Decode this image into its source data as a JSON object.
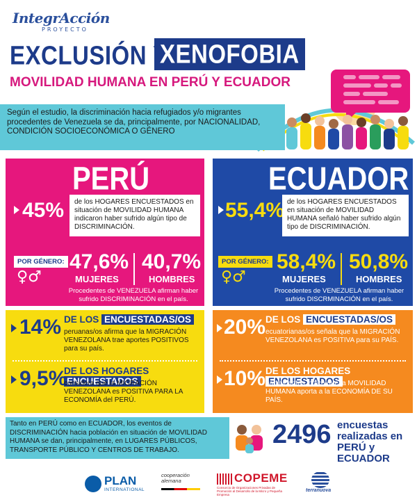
{
  "header": {
    "logo_text": "IntegrAcción",
    "logo_sub": "PROYECTO",
    "title_part1": "EXCLUSIÓN Y",
    "title_part2": "XENOFOBIA",
    "subtitle": "MOVILIDAD HUMANA EN PERÚ Y ECUADOR"
  },
  "intro": {
    "text": "Según el estudio, la discriminación hacia refugiados y/o migrantes procedentes de Venezuela se da, principalmente, por NACIONALIDAD, CONDICIÓN SOCIOECONÓMICA O GÉNERO"
  },
  "peru": {
    "name": "PERÚ",
    "main_pct": "45%",
    "main_text": "de los HOGARES ENCUESTADOS en situación de MOVILIDAD HUMANA indicaron haber sufrido algún tipo de DISCRIMINACIÓN.",
    "gender_label": "POR GÉNERO:",
    "gender_symbols": "♀♂",
    "women_pct": "47,6%",
    "women_label": "MUJERES",
    "men_pct": "40,7%",
    "men_label": "HOMBRES",
    "procedencia": "Procedentes de VENEZUELA afirman haber sufrido DISCRIMINACIÓN en el país.",
    "stat1_pct": "14%",
    "stat1_head_a": "DE LOS",
    "stat1_head_b": "ENCUESTADAS/OS",
    "stat1_text": "peruanas/os afirma que la MIGRACIÓN VENEZOLANA trae aportes POSITIVOS para su país.",
    "stat2_pct": "9,5%",
    "stat2_head_a": "DE LOS HOGARES",
    "stat2_head_b": "ENCUESTADOS",
    "stat2_text": "considera que la MIGRACIÓN VENEZOLANA es POSITIVA PARA LA ECONOMÍA del PERÚ."
  },
  "ecuador": {
    "name": "ECUADOR",
    "main_pct": "55,4%",
    "main_text": "de los HOGARES ENCUESTADOS en situación de MOVILIDAD HUMANA señaló haber sufrido algún tipo de DISCRIMINACIÓN.",
    "gender_label": "POR GÉNERO:",
    "gender_symbols": "♀♂",
    "women_pct": "58,4%",
    "women_label": "MUJERES",
    "men_pct": "50,8%",
    "men_label": "HOMBRES",
    "procedencia": "Procedentes de VENEZUELA afirman haber sufrido DISCRMINACIÓN en el país.",
    "stat1_pct": "20%",
    "stat1_head_a": "DE LOS",
    "stat1_head_b": "ENCUESTADAS/OS",
    "stat1_text": "ecuatorianas/os señala que la MIGRACIÓN VENEZOLANA es POSITIVA para su PAÍS.",
    "stat2_pct": "10%",
    "stat2_head_a": "DE LOS HOGARES",
    "stat2_head_b": "ENCUESTADOS",
    "stat2_text": "participantes indicó que la MOVILIDAD HUMANA aporta a la ECONOMÍA DE SU PAÍS."
  },
  "bottom": {
    "text": "Tanto en PERÚ como en ECUADOR, los eventos de DISCRIMINACIÓN hacia población en situación de MOVILIDAD HUMANA se dan, principalmente, en LUGARES PÚBLICOS, TRANSPORTE PÚBLICO Y CENTROS DE TRABAJO.",
    "encuestas_number": "2496",
    "encuestas_line1": "encuestas",
    "encuestas_line2": "realizadas en",
    "encuestas_line3": "PERÚ y ECUADOR"
  },
  "footer": {
    "plan_name": "PLAN",
    "plan_sub": "INTERNATIONAL",
    "coop_line1": "cooperación",
    "coop_line2": "alemana",
    "copeme_name": "COPEME",
    "copeme_sub": "Consorcio de Organizaciones Privadas de Promoción al Desarrollo de la Micro y Pequeña Empresa",
    "terra_name": "terranuova"
  },
  "colors": {
    "navy": "#1d3b8a",
    "magenta": "#e6177d",
    "blue": "#1f4aa6",
    "yellow": "#f7dc0f",
    "orange": "#f58a1f",
    "cyan": "#5fc8d8"
  }
}
